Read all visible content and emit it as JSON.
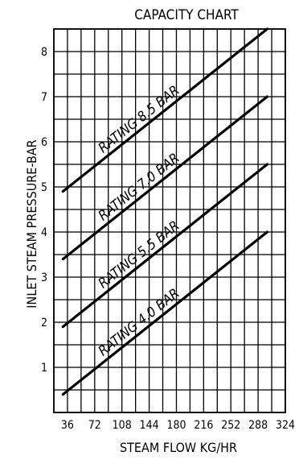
{
  "chart_data": {
    "type": "line",
    "title": "CAPACITY CHART",
    "xlabel": "STEAM FLOW KG/HR",
    "ylabel": "INLET STEAM PRESSURE-BAR",
    "xlim": [
      18,
      324
    ],
    "ylim": [
      0,
      8.5
    ],
    "x_ticks": [
      "36",
      "72",
      "108",
      "144",
      "180",
      "216",
      "252",
      "288",
      "324"
    ],
    "x_tick_values": [
      36,
      72,
      108,
      144,
      180,
      216,
      252,
      288,
      324
    ],
    "y_ticks": [
      "1",
      "2",
      "3",
      "4",
      "5",
      "6",
      "7",
      "8"
    ],
    "y_tick_values": [
      1,
      2,
      3,
      4,
      5,
      6,
      7,
      8
    ],
    "grid": true,
    "series": [
      {
        "name": "RATING 4.0 BAR",
        "label": "RATING 4.0 BAR",
        "points": [
          [
            30,
            0.4
          ],
          [
            300,
            4.0
          ]
        ]
      },
      {
        "name": "RATING 5.5 BAR",
        "label": "RATING 5.5 BAR",
        "points": [
          [
            30,
            1.9
          ],
          [
            300,
            5.5
          ]
        ]
      },
      {
        "name": "RATING 7.0 BAR",
        "label": "RATING 7.0 BAR",
        "points": [
          [
            30,
            3.4
          ],
          [
            300,
            7.0
          ]
        ]
      },
      {
        "name": "RATING 8.5 BAR",
        "label": "RATING 8.5 BAR",
        "points": [
          [
            30,
            4.9
          ],
          [
            300,
            8.5
          ]
        ]
      }
    ],
    "colors": {
      "line": "#000000",
      "grid": "#000000",
      "background": "#ffffff"
    }
  }
}
